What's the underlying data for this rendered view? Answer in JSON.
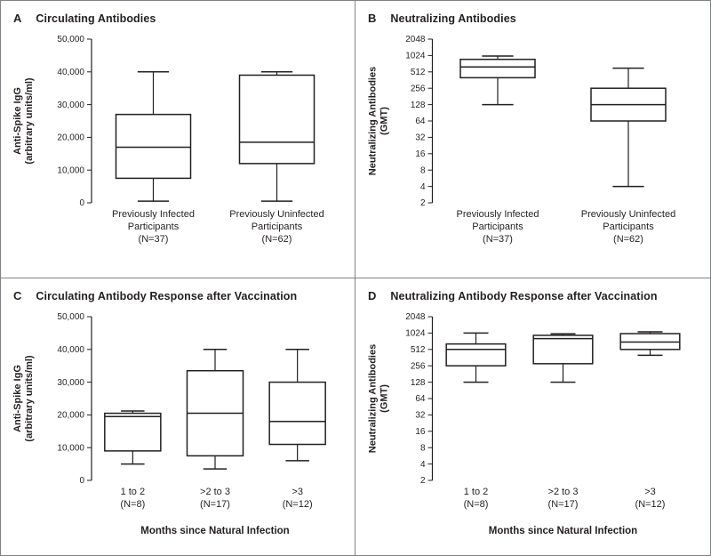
{
  "figure": {
    "ink": "#231f20",
    "border_color": "#808285",
    "background": "#ffffff"
  },
  "chart_data": [
    {
      "type": "box",
      "panel_letter": "A",
      "title": "Circulating Antibodies",
      "ylabel_lines": [
        "Anti-Spike IgG",
        "(arbitrary units/ml)"
      ],
      "yscale": "linear",
      "ylim": [
        0,
        50000
      ],
      "yticks": [
        0,
        10000,
        20000,
        30000,
        40000,
        50000
      ],
      "ytick_labels": [
        "0",
        "10,000",
        "20,000",
        "30,000",
        "40,000",
        "50,000"
      ],
      "categories": [
        [
          "Previously Infected",
          "Participants",
          "(N=37)"
        ],
        [
          "Previously Uninfected",
          "Participants",
          "(N=62)"
        ]
      ],
      "xlabel": "",
      "boxes": [
        {
          "low": 500,
          "q1": 7500,
          "median": 17000,
          "q3": 27000,
          "high": 40000
        },
        {
          "low": 500,
          "q1": 12000,
          "median": 18500,
          "q3": 39000,
          "high": 40000
        }
      ]
    },
    {
      "type": "box",
      "panel_letter": "B",
      "title": "Neutralizing Antibodies",
      "ylabel_lines": [
        "Neutralizing Antibodies",
        "(GMT)"
      ],
      "yscale": "log2",
      "ylim": [
        2,
        2048
      ],
      "yticks": [
        2,
        4,
        8,
        16,
        32,
        64,
        128,
        256,
        512,
        1024,
        2048
      ],
      "ytick_labels": [
        "2",
        "4",
        "8",
        "16",
        "32",
        "64",
        "128",
        "256",
        "512",
        "1024",
        "2048"
      ],
      "categories": [
        [
          "Previously Infected",
          "Participants",
          "(N=37)"
        ],
        [
          "Previously Uninfected",
          "Participants",
          "(N=62)"
        ]
      ],
      "xlabel": "",
      "boxes": [
        {
          "low": 128,
          "q1": 400,
          "median": 630,
          "q3": 870,
          "high": 1000
        },
        {
          "low": 4,
          "q1": 64,
          "median": 128,
          "q3": 256,
          "high": 600
        }
      ]
    },
    {
      "type": "box",
      "panel_letter": "C",
      "title": "Circulating Antibody Response after Vaccination",
      "ylabel_lines": [
        "Anti-Spike IgG",
        "(arbitrary units/ml)"
      ],
      "yscale": "linear",
      "ylim": [
        0,
        50000
      ],
      "yticks": [
        0,
        10000,
        20000,
        30000,
        40000,
        50000
      ],
      "ytick_labels": [
        "0",
        "10,000",
        "20,000",
        "30,000",
        "40,000",
        "50,000"
      ],
      "categories": [
        [
          "1 to 2",
          "(N=8)"
        ],
        [
          ">2 to 3",
          "(N=17)"
        ],
        [
          ">3",
          "(N=12)"
        ]
      ],
      "xlabel": "Months since Natural Infection",
      "boxes": [
        {
          "low": 5000,
          "q1": 9000,
          "median": 19500,
          "q3": 20500,
          "high": 21200
        },
        {
          "low": 3500,
          "q1": 7500,
          "median": 20500,
          "q3": 33500,
          "high": 40000
        },
        {
          "low": 6000,
          "q1": 11000,
          "median": 18000,
          "q3": 30000,
          "high": 40000
        }
      ]
    },
    {
      "type": "box",
      "panel_letter": "D",
      "title": "Neutralizing Antibody Response after Vaccination",
      "ylabel_lines": [
        "Neutralizing Antibodies",
        "(GMT)"
      ],
      "yscale": "log2",
      "ylim": [
        2,
        2048
      ],
      "yticks": [
        2,
        4,
        8,
        16,
        32,
        64,
        128,
        256,
        512,
        1024,
        2048
      ],
      "ytick_labels": [
        "2",
        "4",
        "8",
        "16",
        "32",
        "64",
        "128",
        "256",
        "512",
        "1024",
        "2048"
      ],
      "categories": [
        [
          "1 to 2",
          "(N=8)"
        ],
        [
          ">2 to 3",
          "(N=17)"
        ],
        [
          ">3",
          "(N=12)"
        ]
      ],
      "xlabel": "Months since Natural Infection",
      "boxes": [
        {
          "low": 128,
          "q1": 256,
          "median": 512,
          "q3": 645,
          "high": 1024
        },
        {
          "low": 128,
          "q1": 280,
          "median": 810,
          "q3": 930,
          "high": 990
        },
        {
          "low": 400,
          "q1": 512,
          "median": 700,
          "q3": 1000,
          "high": 1080
        }
      ]
    }
  ]
}
